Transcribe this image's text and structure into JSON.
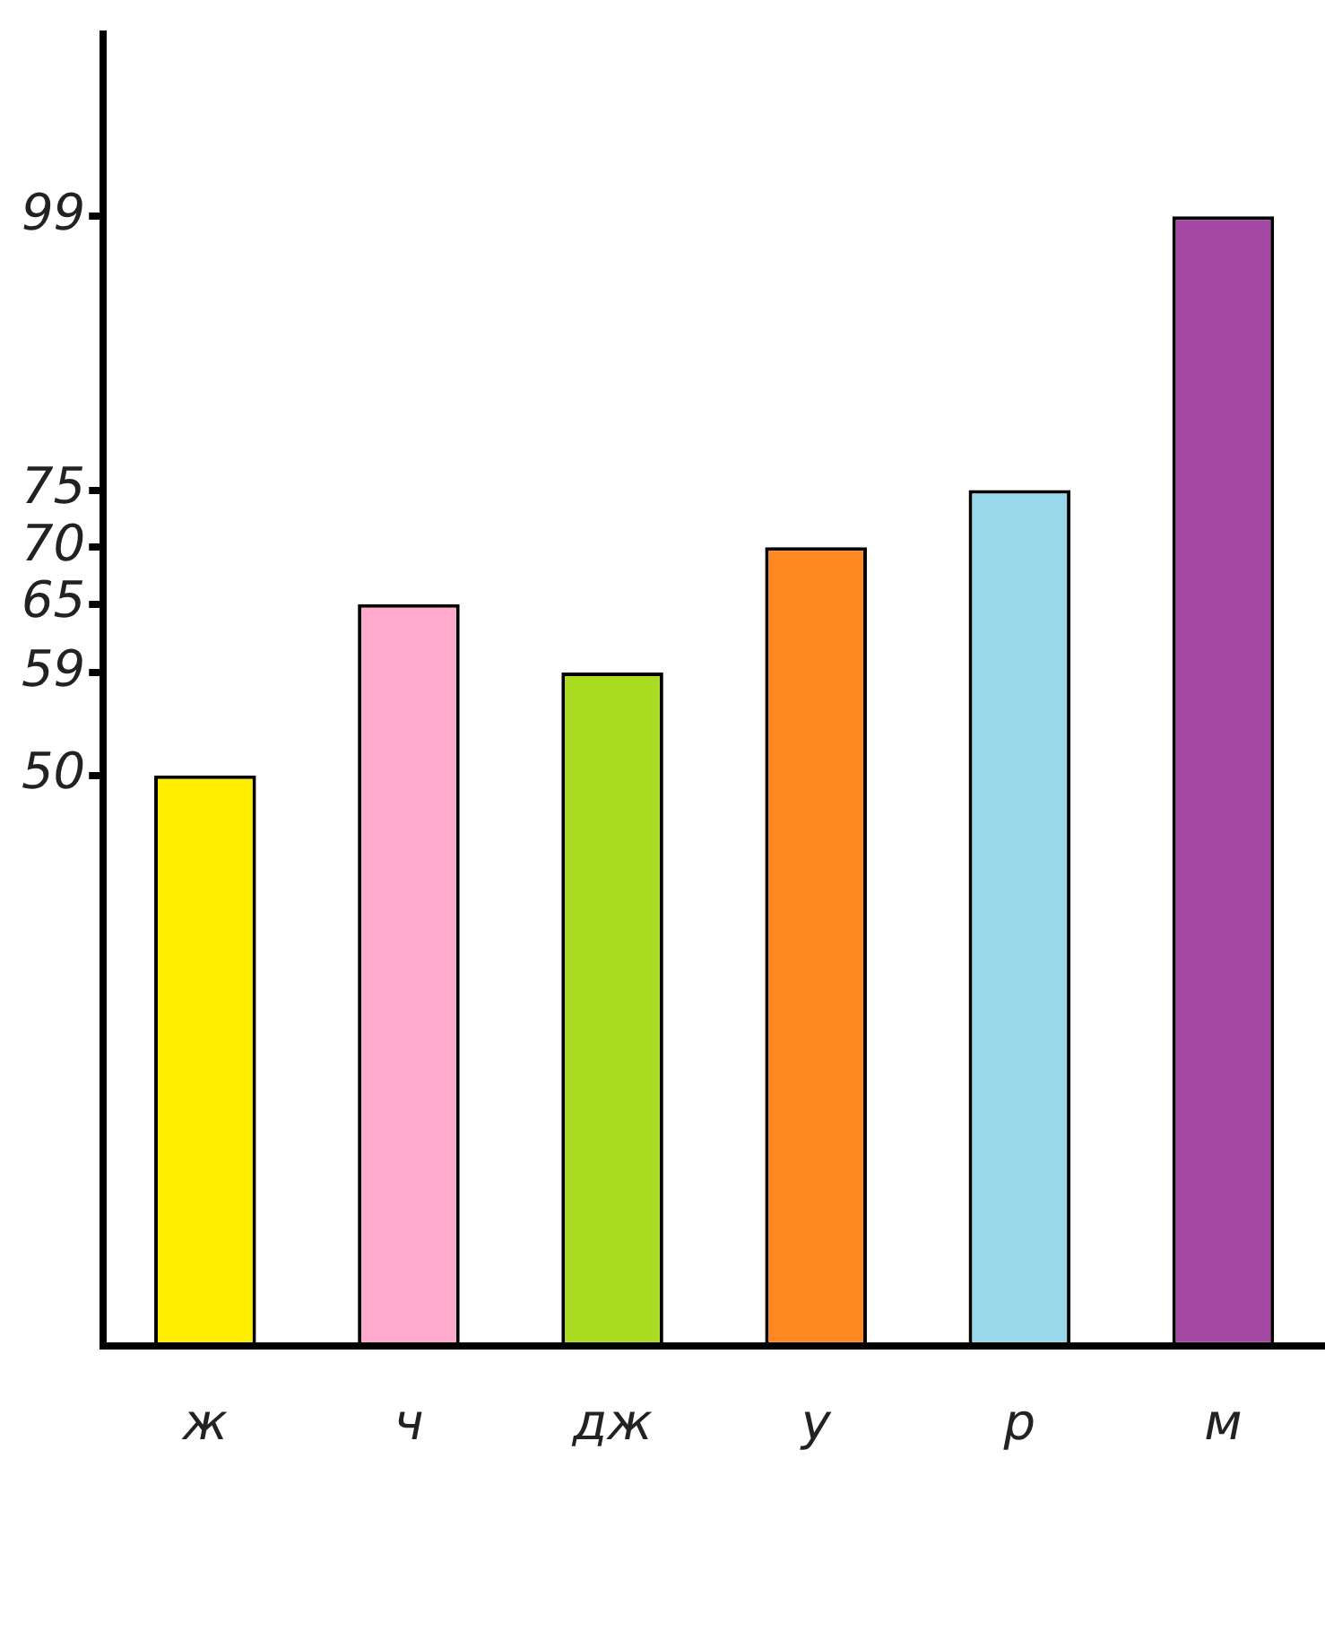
{
  "chart_data": {
    "type": "bar",
    "categories": [
      "ж",
      "ч",
      "дж",
      "у",
      "р",
      "м"
    ],
    "values": [
      50,
      65,
      59,
      70,
      75,
      99
    ],
    "colors": [
      "#ffee00",
      "#ffaacc",
      "#aadd22",
      "#ff8822",
      "#99d8ea",
      "#a349a4"
    ],
    "ylim": [
      0,
      115
    ],
    "yticks": [
      50,
      59,
      65,
      70,
      75,
      99
    ],
    "grid": false,
    "legend": false
  }
}
